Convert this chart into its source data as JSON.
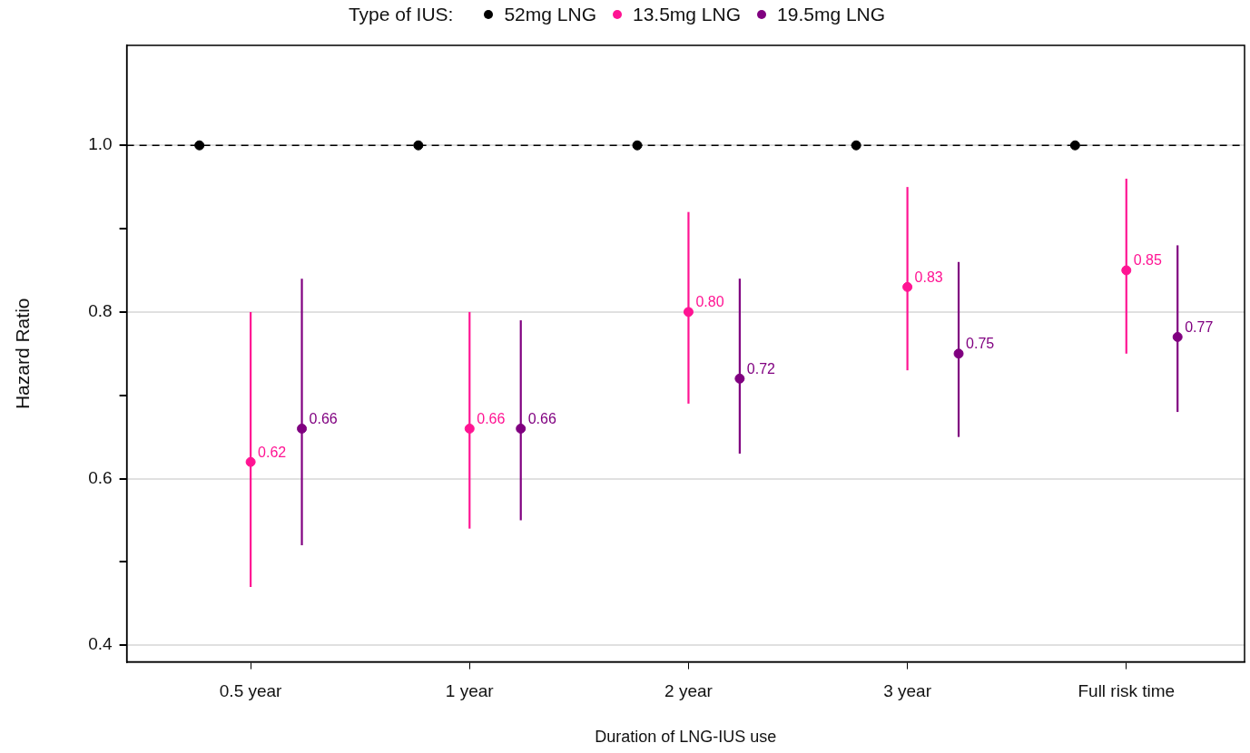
{
  "chart_data": {
    "type": "scatter",
    "xlabel": "Duration of LNG-IUS use",
    "ylabel": "Hazard Ratio",
    "legend_title": "Type of IUS:",
    "categories": [
      "0.5 year",
      "1 year",
      "2 year",
      "3 year",
      "Full risk time"
    ],
    "series": [
      {
        "name": "52mg LNG",
        "color": "#000000",
        "x": [
          "0.5 year",
          "1 year",
          "2 year",
          "3 year",
          "Full risk time"
        ],
        "values": [
          1.0,
          1.0,
          1.0,
          1.0,
          1.0
        ]
      },
      {
        "name": "13.5mg LNG",
        "color": "#ff1493",
        "x": [
          "0.5 year",
          "1 year",
          "2 year",
          "3 year",
          "Full risk time"
        ],
        "values": [
          0.62,
          0.66,
          0.8,
          0.83,
          0.85
        ],
        "errors": [
          [
            0.47,
            0.8
          ],
          [
            0.54,
            0.8
          ],
          [
            0.69,
            0.92
          ],
          [
            0.73,
            0.95
          ],
          [
            0.75,
            0.96
          ]
        ],
        "value_labels": [
          "0.62",
          "0.66",
          "0.80",
          "0.83",
          "0.85"
        ]
      },
      {
        "name": "19.5mg LNG",
        "color": "#800080",
        "x": [
          "0.5 year",
          "1 year",
          "2 year",
          "3 year",
          "Full risk time"
        ],
        "values": [
          0.66,
          0.66,
          0.72,
          0.75,
          0.77
        ],
        "errors": [
          [
            0.52,
            0.84
          ],
          [
            0.55,
            0.79
          ],
          [
            0.63,
            0.84
          ],
          [
            0.65,
            0.86
          ],
          [
            0.68,
            0.88
          ]
        ],
        "value_labels": [
          "0.66",
          "0.66",
          "0.72",
          "0.75",
          "0.77"
        ]
      }
    ],
    "ylim": [
      0.38,
      1.12
    ],
    "yticks": [
      0.4,
      {
        "value": 0.5,
        "label": null
      },
      0.6,
      {
        "value": 0.7,
        "label": null
      },
      0.8,
      {
        "value": 0.9,
        "label": null
      },
      {
        "value": 1.0,
        "label": "1.0"
      }
    ],
    "ref_lines": [
      {
        "axis": "y",
        "value": 1.0,
        "label": null,
        "color": "#000000",
        "line_style": "dashed"
      }
    ],
    "grid": "y",
    "legend": "top",
    "marker": "circle"
  }
}
